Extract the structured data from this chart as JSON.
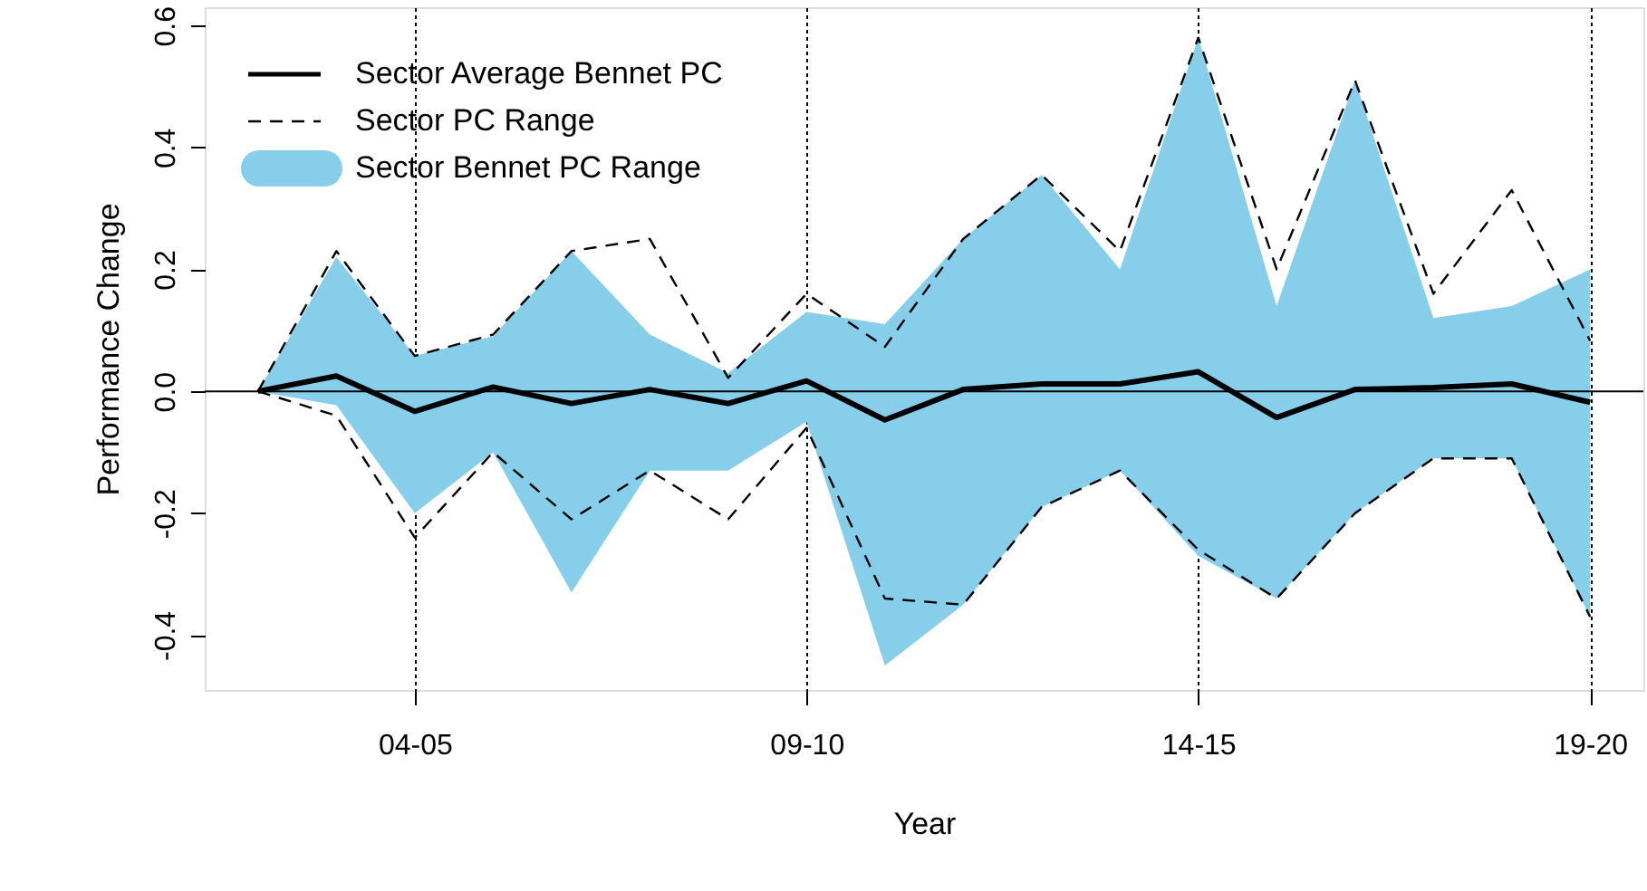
{
  "chart_data": {
    "type": "line",
    "xlabel": "Year",
    "ylabel": "Performance Change",
    "categories": [
      null,
      null,
      "04-05",
      null,
      null,
      null,
      null,
      "09-10",
      null,
      null,
      null,
      null,
      "14-15",
      null,
      null,
      null,
      null,
      "19-20"
    ],
    "ylim": [
      -0.49,
      0.63
    ],
    "yticks": [
      -0.4,
      -0.2,
      {
        "value": 0,
        "label": "0.0"
      },
      0.2,
      0.4,
      0.6
    ],
    "grid": "x",
    "legend": "top left",
    "series": [
      {
        "name": "Sector PC Range",
        "color": "#000000",
        "line_style": "dashed",
        "values": [
          0,
          0.23,
          0.058,
          0.093,
          0.23,
          0.25,
          0.022,
          0.16,
          0.073,
          0.25,
          0.355,
          0.23,
          0.58,
          0.2,
          0.51,
          0.16,
          0.33,
          0.083
        ]
      },
      {
        "color": "#000000",
        "line_style": "dashed",
        "values": [
          0,
          -0.04,
          -0.24,
          -0.1,
          -0.21,
          -0.13,
          -0.21,
          -0.06,
          -0.34,
          -0.35,
          -0.19,
          -0.13,
          -0.26,
          -0.34,
          -0.2,
          -0.11,
          -0.11,
          -0.37
        ]
      },
      {
        "name": "Sector Average Bennet PC",
        "color": "#000000",
        "line_style": "solid",
        "values": [
          0,
          0.025,
          -0.033,
          0.007,
          -0.02,
          0.003,
          -0.02,
          0.017,
          -0.047,
          0.003,
          0.012,
          0.012,
          0.032,
          -0.043,
          0.003,
          0.006,
          0.012,
          -0.018
        ],
        "upper": [
          0,
          0.22,
          0.058,
          0.09,
          0.23,
          0.093,
          0.03,
          0.13,
          0.11,
          0.25,
          0.355,
          0.2,
          0.58,
          0.14,
          0.51,
          0.12,
          0.14,
          0.2
        ],
        "lower": [
          0,
          -0.023,
          -0.2,
          -0.1,
          -0.33,
          -0.13,
          -0.13,
          -0.05,
          -0.45,
          -0.35,
          -0.19,
          -0.13,
          -0.27,
          -0.34,
          -0.2,
          -0.11,
          -0.11,
          -0.37
        ],
        "colors": [
          "#87ceeb",
          "#87ceeb",
          "#87ceeb",
          "#87ceeb",
          "#87ceeb",
          "#87ceeb",
          "#87ceeb",
          "#87ceeb",
          "#87ceeb",
          "#87ceeb",
          "#87ceeb",
          "#87ceeb",
          "#87ceeb",
          "#87ceeb",
          "#87ceeb",
          "#87ceeb",
          "#87ceeb",
          "#87ceeb"
        ]
      }
    ],
    "annotations": [
      "Sector Bennet PC Range"
    ],
    "ref_lines": [
      {
        "axis": "y",
        "value": 0,
        "color": "#000000",
        "line_style": "solid"
      }
    ]
  }
}
